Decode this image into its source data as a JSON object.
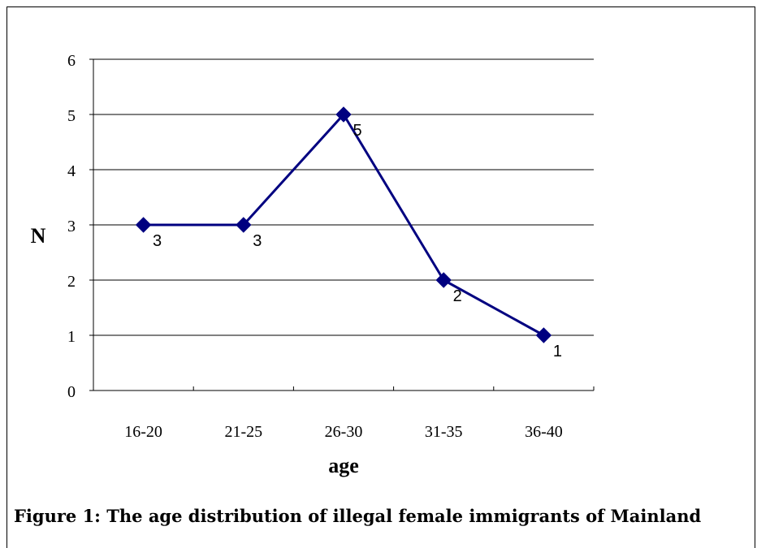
{
  "caption": "Figure 1: The age distribution of illegal female immigrants of Mainland",
  "chart_data": {
    "type": "line",
    "title": "",
    "xlabel": "age",
    "ylabel": "N",
    "categories": [
      "16-20",
      "21-25",
      "26-30",
      "31-35",
      "36-40"
    ],
    "series": [
      {
        "values": [
          3,
          3,
          5,
          2,
          1
        ]
      }
    ],
    "data_labels": [
      "3",
      "3",
      "5",
      "2",
      "1"
    ],
    "ylim": [
      0,
      6
    ],
    "yticks": [
      "0",
      "1",
      "2",
      "3",
      "4",
      "5",
      "6"
    ],
    "grid": true,
    "legend": "none",
    "marker": "diamond",
    "line_color": "#000080",
    "grid_color": "#000000"
  }
}
